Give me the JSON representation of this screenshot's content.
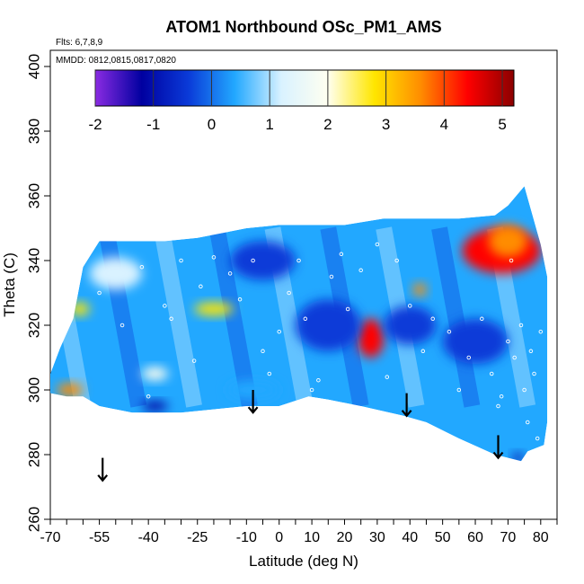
{
  "chart_data": {
    "type": "heatmap",
    "title": "ATOM1 Northbound OSc_PM1_AMS",
    "annotations": [
      "Flts: 6,7,8,9",
      "MMDD: 0812,0815,0817,0820"
    ],
    "xlabel": "Latitude (deg N)",
    "ylabel": "Theta (C)",
    "xlim": [
      -70,
      85
    ],
    "ylim": [
      260,
      405
    ],
    "x_ticks": [
      -70,
      -55,
      -40,
      -25,
      -10,
      0,
      10,
      20,
      30,
      40,
      50,
      60,
      70,
      80
    ],
    "x_tick_labels": [
      "-70",
      "-55",
      "-40",
      "-25",
      "-10",
      "0",
      "10",
      "20",
      "30",
      "40",
      "50",
      "60",
      "70",
      "80"
    ],
    "y_ticks": [
      260,
      280,
      300,
      320,
      340,
      360,
      380,
      400
    ],
    "y_tick_labels": [
      "260",
      "280",
      "300",
      "320",
      "340",
      "360",
      "380",
      "400"
    ],
    "colorbar": {
      "range": [
        -2,
        5.2
      ],
      "ticks": [
        -2,
        -1,
        0,
        1,
        2,
        3,
        4,
        5
      ],
      "tick_labels": [
        "-2",
        "-1",
        "0",
        "1",
        "2",
        "3",
        "4",
        "5"
      ],
      "colors": [
        "#8a2be2",
        "#0000a0",
        "#0a3ad8",
        "#22a8ff",
        "#d9f2ff",
        "#fffff0",
        "#ffe600",
        "#ff8c00",
        "#ff0000",
        "#8b0000"
      ]
    },
    "field_background_value": 0.5,
    "field_outline": [
      [
        -55,
        346
      ],
      [
        -45,
        346
      ],
      [
        -35,
        346
      ],
      [
        -25,
        347
      ],
      [
        -10,
        350
      ],
      [
        0,
        351
      ],
      [
        10,
        351
      ],
      [
        20,
        351
      ],
      [
        32,
        353
      ],
      [
        45,
        353
      ],
      [
        55,
        353
      ],
      [
        66,
        354
      ],
      [
        70,
        357
      ],
      [
        75,
        363
      ],
      [
        80,
        345
      ],
      [
        82,
        335
      ],
      [
        82,
        290
      ],
      [
        81,
        283
      ],
      [
        76,
        281
      ],
      [
        74,
        278
      ],
      [
        70,
        279
      ],
      [
        66,
        280
      ],
      [
        55,
        285
      ],
      [
        45,
        290
      ],
      [
        38,
        292
      ],
      [
        25,
        295
      ],
      [
        15,
        297
      ],
      [
        9,
        298
      ],
      [
        0,
        295
      ],
      [
        -10,
        295
      ],
      [
        -20,
        294
      ],
      [
        -30,
        293
      ],
      [
        -45,
        293
      ],
      [
        -55,
        295
      ],
      [
        -60,
        298
      ],
      [
        -65,
        298
      ],
      [
        -70,
        299
      ],
      [
        -70,
        305
      ],
      [
        -67,
        313
      ],
      [
        -63,
        322
      ],
      [
        -60,
        338
      ]
    ],
    "field_features": [
      {
        "lat": 68,
        "theta": 343,
        "rx": 12,
        "ry": 7,
        "value": 4.6
      },
      {
        "lat": 70,
        "theta": 346,
        "rx": 6,
        "ry": 5,
        "value": 3.8
      },
      {
        "lat": 28,
        "theta": 316,
        "rx": 4,
        "ry": 6,
        "value": 4.2
      },
      {
        "lat": -64,
        "theta": 300,
        "rx": 4,
        "ry": 2,
        "value": 3.5
      },
      {
        "lat": -61,
        "theta": 325,
        "rx": 3,
        "ry": 2,
        "value": 2.6
      },
      {
        "lat": -20,
        "theta": 325,
        "rx": 6,
        "ry": 2,
        "value": 2.8
      },
      {
        "lat": -38,
        "theta": 305,
        "rx": 4,
        "ry": 2,
        "value": 2.2
      },
      {
        "lat": 43,
        "theta": 331,
        "rx": 2,
        "ry": 2,
        "value": 3.2
      },
      {
        "lat": -5,
        "theta": 340,
        "rx": 10,
        "ry": 6,
        "value": -0.6
      },
      {
        "lat": 15,
        "theta": 320,
        "rx": 10,
        "ry": 8,
        "value": -0.5
      },
      {
        "lat": 40,
        "theta": 320,
        "rx": 8,
        "ry": 6,
        "value": -0.6
      },
      {
        "lat": 60,
        "theta": 315,
        "rx": 10,
        "ry": 7,
        "value": -0.8
      },
      {
        "lat": -38,
        "theta": 295,
        "rx": 4,
        "ry": 1.5,
        "value": -1.2
      },
      {
        "lat": 73,
        "theta": 279,
        "rx": 1.5,
        "ry": 1.5,
        "value": -1.0
      },
      {
        "lat": -50,
        "theta": 336,
        "rx": 8,
        "ry": 5,
        "value": 1.4
      },
      {
        "lat": -8,
        "theta": 300,
        "rx": 8,
        "ry": 3,
        "value": 0.2
      }
    ],
    "sample_points": [
      {
        "lat": -55,
        "theta": 330
      },
      {
        "lat": -48,
        "theta": 320
      },
      {
        "lat": -42,
        "theta": 338
      },
      {
        "lat": -35,
        "theta": 326
      },
      {
        "lat": -30,
        "theta": 340
      },
      {
        "lat": -24,
        "theta": 332
      },
      {
        "lat": -20,
        "theta": 341
      },
      {
        "lat": -15,
        "theta": 336
      },
      {
        "lat": -12,
        "theta": 328
      },
      {
        "lat": -8,
        "theta": 340
      },
      {
        "lat": -5,
        "theta": 312
      },
      {
        "lat": -3,
        "theta": 305
      },
      {
        "lat": 0,
        "theta": 318
      },
      {
        "lat": 3,
        "theta": 330
      },
      {
        "lat": 6,
        "theta": 340
      },
      {
        "lat": 8,
        "theta": 322
      },
      {
        "lat": 12,
        "theta": 303
      },
      {
        "lat": 16,
        "theta": 335
      },
      {
        "lat": 19,
        "theta": 342
      },
      {
        "lat": 21,
        "theta": 325
      },
      {
        "lat": 25,
        "theta": 337
      },
      {
        "lat": 30,
        "theta": 345
      },
      {
        "lat": 33,
        "theta": 304
      },
      {
        "lat": 36,
        "theta": 340
      },
      {
        "lat": 40,
        "theta": 326
      },
      {
        "lat": 44,
        "theta": 312
      },
      {
        "lat": 47,
        "theta": 322
      },
      {
        "lat": 52,
        "theta": 318
      },
      {
        "lat": 55,
        "theta": 300
      },
      {
        "lat": 58,
        "theta": 310
      },
      {
        "lat": 62,
        "theta": 322
      },
      {
        "lat": 65,
        "theta": 305
      },
      {
        "lat": 68,
        "theta": 298
      },
      {
        "lat": 70,
        "theta": 315
      },
      {
        "lat": 72,
        "theta": 310
      },
      {
        "lat": 74,
        "theta": 320
      },
      {
        "lat": 75,
        "theta": 300
      },
      {
        "lat": 76,
        "theta": 290
      },
      {
        "lat": 77,
        "theta": 312
      },
      {
        "lat": 78,
        "theta": 305
      },
      {
        "lat": 79,
        "theta": 285
      },
      {
        "lat": 80,
        "theta": 318
      },
      {
        "lat": -40,
        "theta": 298
      },
      {
        "lat": -33,
        "theta": 322
      },
      {
        "lat": 10,
        "theta": 300
      },
      {
        "lat": 67,
        "theta": 295
      },
      {
        "lat": 71,
        "theta": 340
      },
      {
        "lat": -26,
        "theta": 309
      }
    ],
    "arrows": [
      {
        "lat": -54,
        "theta_top": 279,
        "theta_bottom": 272
      },
      {
        "lat": -8,
        "theta_top": 300,
        "theta_bottom": 293
      },
      {
        "lat": 39,
        "theta_top": 299,
        "theta_bottom": 292
      },
      {
        "lat": 67,
        "theta_top": 286,
        "theta_bottom": 279
      }
    ]
  }
}
